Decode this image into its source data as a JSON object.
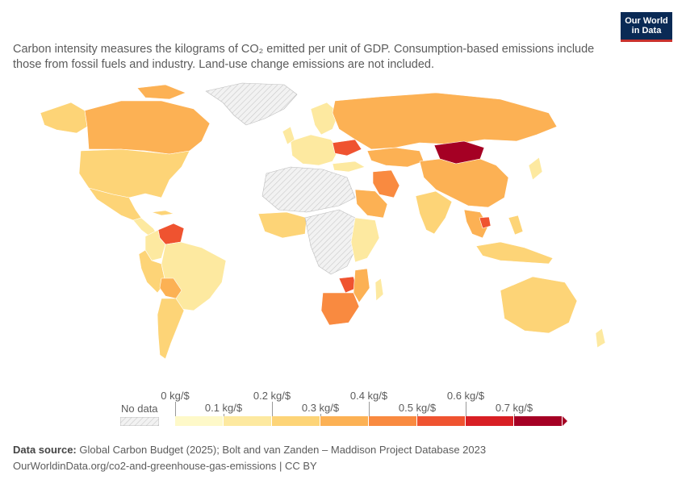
{
  "subtitle": "Carbon intensity measures the kilograms of CO₂ emitted per unit of GDP. Consumption-based emissions include those from fossil fuels and industry. Land-use change emissions are not included.",
  "logo": {
    "line1": "Our World",
    "line2": "in Data"
  },
  "legend": {
    "no_data_label": "No data",
    "ticks": [
      "0 kg/$",
      "0.1 kg/$",
      "0.2 kg/$",
      "0.3 kg/$",
      "0.4 kg/$",
      "0.5 kg/$",
      "0.6 kg/$",
      "0.7 kg/$"
    ],
    "colors": [
      "#fef9c9",
      "#fde9a0",
      "#fdd477",
      "#fcb154",
      "#f98a40",
      "#ef5330",
      "#d81f24",
      "#a50024"
    ],
    "no_data_color": "#e0e0e0"
  },
  "footer": {
    "source_label": "Data source:",
    "source_text": "Global Carbon Budget (2025); Bolt and van Zanden – Maddison Project Database 2023",
    "url_line": "OurWorldinData.org/co2-and-greenhouse-gas-emissions | CC BY"
  },
  "regions": [
    {
      "name": "Canada",
      "value": 0.3
    },
    {
      "name": "United States",
      "value": 0.2
    },
    {
      "name": "Mexico",
      "value": 0.2
    },
    {
      "name": "Greenland",
      "value": null
    },
    {
      "name": "Venezuela",
      "value": 0.6
    },
    {
      "name": "Colombia",
      "value": 0.15
    },
    {
      "name": "Brazil",
      "value": 0.15
    },
    {
      "name": "Bolivia",
      "value": 0.3
    },
    {
      "name": "Argentina",
      "value": 0.2
    },
    {
      "name": "Peru",
      "value": 0.15
    },
    {
      "name": "Chile",
      "value": 0.2
    },
    {
      "name": "Russia",
      "value": 0.4
    },
    {
      "name": "Mongolia",
      "value": 0.8
    },
    {
      "name": "Kazakhstan",
      "value": 0.35
    },
    {
      "name": "China",
      "value": 0.35
    },
    {
      "name": "India",
      "value": 0.25
    },
    {
      "name": "Iran",
      "value": 0.45
    },
    {
      "name": "Saudi Arabia",
      "value": 0.35
    },
    {
      "name": "Ukraine",
      "value": 0.6
    },
    {
      "name": "South Africa",
      "value": 0.5
    },
    {
      "name": "Zimbabwe",
      "value": 0.55
    },
    {
      "name": "Mozambique",
      "value": 0.4
    },
    {
      "name": "Australia",
      "value": 0.2
    },
    {
      "name": "Indonesia",
      "value": 0.2
    },
    {
      "name": "Malaysia",
      "value": 0.4
    }
  ]
}
